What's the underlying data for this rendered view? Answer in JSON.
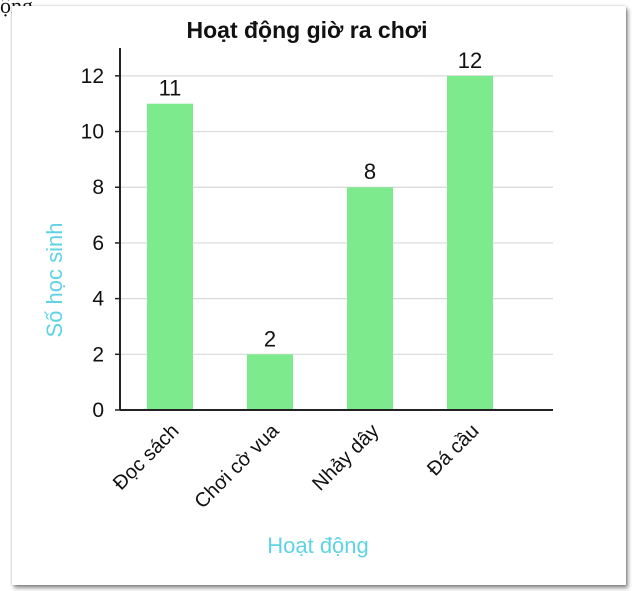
{
  "top_fragment": "ộng",
  "chart_data": {
    "type": "bar",
    "title": "Hoạt động giờ ra chơi",
    "xlabel": "Hoạt động",
    "ylabel": "Số học sinh",
    "categories": [
      "Đọc sách",
      "Chơi cờ vua",
      "Nhảy dây",
      "Đá cầu"
    ],
    "values": [
      11,
      2,
      8,
      12
    ],
    "ylim": [
      0,
      13
    ],
    "yticks": [
      0,
      2,
      4,
      6,
      8,
      10,
      12
    ],
    "grid": true,
    "legend": "none",
    "colors": {
      "bar": "#7eea8e",
      "axis_label": "#5fd3e3",
      "grid": "#d9d9d9",
      "axis": "#222222",
      "text": "#111111"
    }
  }
}
